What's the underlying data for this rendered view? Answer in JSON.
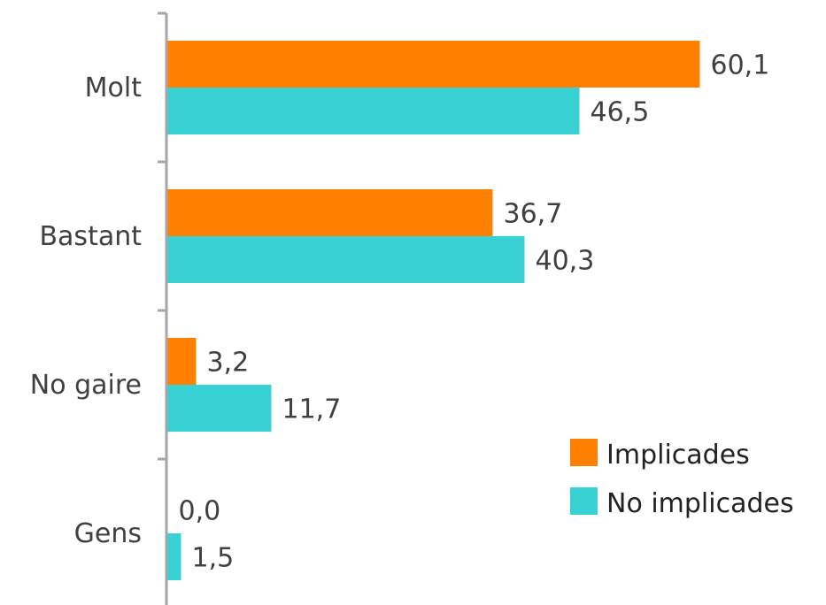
{
  "chart_data": {
    "type": "bar",
    "orientation": "horizontal",
    "categories": [
      "Molt",
      "Bastant",
      "No gaire",
      "Gens"
    ],
    "series": [
      {
        "name": "Implicades",
        "values": [
          60.1,
          36.7,
          3.2,
          0.0
        ],
        "labels": [
          "60,1",
          "36,7",
          "3,2",
          "0,0"
        ],
        "color": "#ff7f00"
      },
      {
        "name": "No implicades",
        "values": [
          46.5,
          40.3,
          11.7,
          1.5
        ],
        "labels": [
          "46,5",
          "40,3",
          "11,7",
          "1,5"
        ],
        "color": "#38d1d4"
      }
    ],
    "xlim": [
      0,
      80
    ],
    "legend": "bottom-right",
    "grid": false,
    "title": "",
    "xlabel": "",
    "ylabel": ""
  }
}
